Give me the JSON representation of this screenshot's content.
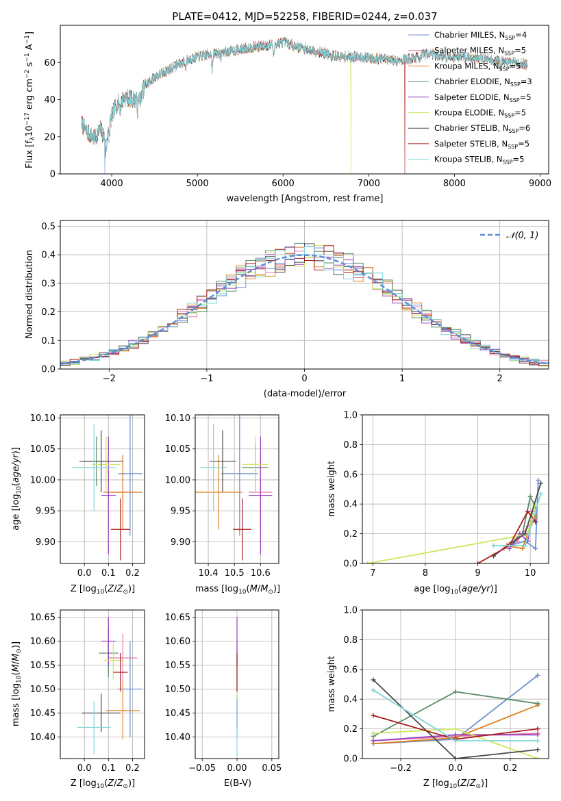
{
  "chart_data": [
    {
      "id": "spectrum",
      "type": "line",
      "title": "PLATE=0412, MJD=52258, FIBERID=0244, z=0.037",
      "xlabel": "wavelength [Angstrom, rest frame]",
      "ylabel_parts": [
        "Flux [f",
        "λ",
        "10",
        "−17",
        " erg cm",
        "−2",
        " s",
        "−1",
        " A",
        "−1",
        "]"
      ],
      "xlim": [
        3400,
        9100
      ],
      "ylim": [
        0,
        80
      ],
      "xticks": [
        4000,
        5000,
        6000,
        7000,
        8000,
        9000
      ],
      "yticks": [
        0,
        20,
        40,
        60
      ],
      "spectrum_wavelength_range": [
        3650,
        8850
      ],
      "continuum_anchors": {
        "wavelength": [
          3650,
          3700,
          3750,
          3800,
          3870,
          3930,
          3970,
          4050,
          4150,
          4300,
          4400,
          4500,
          4700,
          4860,
          5000,
          5200,
          5400,
          5600,
          5800,
          6000,
          6200,
          6400,
          6560,
          6700,
          6900,
          7100,
          7300,
          7500,
          7700,
          7900,
          8100,
          8300,
          8500,
          8700,
          8850
        ],
        "flux": [
          27,
          23,
          21,
          19,
          24,
          18,
          27,
          37,
          41,
          40,
          48,
          52,
          57,
          61,
          63,
          65,
          66,
          68,
          69,
          71,
          68,
          66,
          64,
          63,
          63,
          62,
          61,
          62,
          65,
          63,
          63,
          62,
          61,
          60,
          59
        ]
      },
      "absorption_features": [
        {
          "wavelength": 3934,
          "depth": 8
        },
        {
          "wavelength": 3969,
          "depth": 7
        },
        {
          "wavelength": 4102,
          "depth": 4
        },
        {
          "wavelength": 4304,
          "depth": 6
        },
        {
          "wavelength": 4340,
          "depth": 4
        },
        {
          "wavelength": 4861,
          "depth": 4
        },
        {
          "wavelength": 5175,
          "depth": 8
        },
        {
          "wavelength": 5270,
          "depth": 3
        },
        {
          "wavelength": 5893,
          "depth": 7
        },
        {
          "wavelength": 6563,
          "depth": 3
        },
        {
          "wavelength": 7600,
          "depth": 2
        },
        {
          "wavelength": 8542,
          "depth": 4
        }
      ],
      "model_dropouts": [
        {
          "model": "Chabrier MILES",
          "wavelength": 3920
        },
        {
          "model": "Kroupa ELODIE",
          "wavelength": 6790
        },
        {
          "model": "Salpeter STELIB",
          "wavelength": 7420
        }
      ],
      "models": [
        {
          "name": "Chabrier MILES",
          "nssp": 4,
          "color": "#6e8fd4"
        },
        {
          "name": "Salpeter MILES",
          "nssp": 5,
          "color": "#e07aa8"
        },
        {
          "name": "Kroupa MILES",
          "nssp": 5,
          "color": "#e0801c"
        },
        {
          "name": "Chabrier ELODIE",
          "nssp": 3,
          "color": "#5a8a68"
        },
        {
          "name": "Salpeter ELODIE",
          "nssp": 5,
          "color": "#9b3dbf"
        },
        {
          "name": "Kroupa ELODIE",
          "nssp": 5,
          "color": "#cde65e"
        },
        {
          "name": "Chabrier STELIB",
          "nssp": 6,
          "color": "#4a4a4a"
        },
        {
          "name": "Salpeter STELIB",
          "nssp": 5,
          "color": "#a81c1c"
        },
        {
          "name": "Kroupa STELIB",
          "nssp": 5,
          "color": "#7ed6dc"
        }
      ],
      "legend": {
        "placement": "top-right",
        "nssp_prefix": "N",
        "nssp_sub": "SSP",
        "nssp_eq": "="
      }
    },
    {
      "id": "residuals",
      "type": "histogram",
      "xlabel": "(data-model)/error",
      "ylabel": "Normed distribution",
      "xlim": [
        -2.5,
        2.5
      ],
      "ylim": [
        0,
        0.52
      ],
      "xticks": [
        -2,
        -1,
        0,
        1,
        2
      ],
      "yticks": [
        0,
        0.1,
        0.2,
        0.3,
        0.4,
        0.5
      ],
      "bin_width": 0.1,
      "grid": true,
      "reference_curve": {
        "name": "𝒩(0, 1)",
        "mean": 0,
        "sigma": 1,
        "color": "#5b8bd9",
        "dashed": true
      },
      "legend": {
        "placement": "top-right"
      }
    },
    {
      "id": "age-vs-z",
      "type": "errorbar",
      "xlabel": "Z [log10(Z/Z⊙)]",
      "ylabel": "age  [log10(age/yr)]",
      "xlim": [
        -0.1,
        0.25
      ],
      "ylim": [
        9.865,
        10.105
      ],
      "xticks": [
        0.0,
        0.1,
        0.2
      ],
      "yticks": [
        9.9,
        9.95,
        10.0,
        10.05,
        10.1
      ],
      "grid": true,
      "points": [
        {
          "model": "Chabrier MILES",
          "x": 0.19,
          "xerr": 0.05,
          "y": 10.01,
          "yerr": 0.1
        },
        {
          "model": "Salpeter MILES",
          "x": 0.16,
          "xerr": 0.06,
          "y": 9.98,
          "yerr": 0.06
        },
        {
          "model": "Kroupa MILES",
          "x": 0.16,
          "xerr": 0.08,
          "y": 9.98,
          "yerr": 0.06
        },
        {
          "model": "Chabrier ELODIE",
          "x": 0.05,
          "xerr": 0.05,
          "y": 10.03,
          "yerr": 0.04
        },
        {
          "model": "Salpeter ELODIE",
          "x": 0.1,
          "xerr": 0.03,
          "y": 9.975,
          "yerr": 0.095
        },
        {
          "model": "Kroupa ELODIE",
          "x": 0.09,
          "xerr": 0.06,
          "y": 10.025,
          "yerr": 0.045
        },
        {
          "model": "Chabrier STELIB",
          "x": 0.07,
          "xerr": 0.09,
          "y": 10.03,
          "yerr": 0.05
        },
        {
          "model": "Salpeter STELIB",
          "x": 0.15,
          "xerr": 0.04,
          "y": 9.92,
          "yerr": 0.05
        },
        {
          "model": "Kroupa STELIB",
          "x": 0.04,
          "xerr": 0.09,
          "y": 10.02,
          "yerr": 0.07
        }
      ]
    },
    {
      "id": "age-vs-mass",
      "type": "errorbar",
      "xlabel": "mass [log10(M/M⊙)]",
      "xlim": [
        10.35,
        10.67
      ],
      "ylim": [
        9.865,
        10.105
      ],
      "xticks": [
        10.4,
        10.5,
        10.6
      ],
      "yticks": [
        9.9,
        9.95,
        10.0,
        10.05,
        10.1
      ],
      "grid": true,
      "points": [
        {
          "model": "Chabrier MILES",
          "x": 10.52,
          "xerr": 0.07,
          "y": 10.01,
          "yerr": 0.1
        },
        {
          "model": "Salpeter MILES",
          "x": 10.6,
          "xerr": 0.045,
          "y": 9.98,
          "yerr": 0.06
        },
        {
          "model": "Kroupa MILES",
          "x": 10.44,
          "xerr": 0.09,
          "y": 9.98,
          "yerr": 0.06
        },
        {
          "model": "Chabrier ELODIE",
          "x": 10.58,
          "xerr": 0.05,
          "y": 10.02,
          "yerr": 0.04
        },
        {
          "model": "Salpeter ELODIE",
          "x": 10.6,
          "xerr": 0.045,
          "y": 9.975,
          "yerr": 0.095
        },
        {
          "model": "Kroupa ELODIE",
          "x": 10.58,
          "xerr": 0.05,
          "y": 10.025,
          "yerr": 0.045
        },
        {
          "model": "Chabrier STELIB",
          "x": 10.455,
          "xerr": 0.05,
          "y": 10.03,
          "yerr": 0.05
        },
        {
          "model": "Salpeter STELIB",
          "x": 10.53,
          "xerr": 0.035,
          "y": 9.92,
          "yerr": 0.05
        },
        {
          "model": "Kroupa STELIB",
          "x": 10.42,
          "xerr": 0.05,
          "y": 10.02,
          "yerr": 0.07
        }
      ]
    },
    {
      "id": "weight-vs-age",
      "type": "line",
      "xlabel": "age  [log10(age/yr)]",
      "ylabel": "mass weight",
      "xlim": [
        6.8,
        10.35
      ],
      "ylim": [
        0,
        1
      ],
      "xticks": [
        7,
        8,
        9,
        10
      ],
      "yticks": [
        0.0,
        0.2,
        0.4,
        0.6,
        0.8,
        1.0
      ],
      "grid": true,
      "series": [
        {
          "model": "Chabrier MILES",
          "x": [
            9.6,
            9.9,
            10.1,
            10.15
          ],
          "y": [
            0.12,
            0.15,
            0.1,
            0.56
          ]
        },
        {
          "model": "Salpeter MILES",
          "x": [
            9.5,
            9.75,
            9.95,
            10.1
          ],
          "y": [
            0.1,
            0.15,
            0.25,
            0.3
          ]
        },
        {
          "model": "Kroupa MILES",
          "x": [
            9.55,
            9.85,
            9.95,
            10.1
          ],
          "y": [
            0.12,
            0.1,
            0.2,
            0.32
          ]
        },
        {
          "model": "Chabrier ELODIE",
          "x": [
            9.7,
            9.85,
            10.0,
            10.1
          ],
          "y": [
            0.15,
            0.2,
            0.45,
            0.38
          ]
        },
        {
          "model": "Salpeter ELODIE",
          "x": [
            9.6,
            9.8,
            9.95,
            10.05
          ],
          "y": [
            0.1,
            0.2,
            0.15,
            0.35
          ]
        },
        {
          "model": "Kroupa ELODIE",
          "x": [
            6.9,
            9.7,
            9.95,
            10.1
          ],
          "y": [
            0.0,
            0.18,
            0.2,
            0.4
          ]
        },
        {
          "model": "Chabrier STELIB",
          "x": [
            9.3,
            9.6,
            9.9,
            10.2
          ],
          "y": [
            0.05,
            0.13,
            0.2,
            0.54
          ]
        },
        {
          "model": "Salpeter STELIB",
          "x": [
            9.0,
            9.6,
            9.95,
            10.1
          ],
          "y": [
            0.0,
            0.12,
            0.35,
            0.28
          ]
        },
        {
          "model": "Kroupa STELIB",
          "x": [
            9.3,
            9.6,
            9.9,
            10.2
          ],
          "y": [
            0.12,
            0.12,
            0.12,
            0.47
          ]
        }
      ]
    },
    {
      "id": "mass-vs-z",
      "type": "errorbar",
      "xlabel": "Z [log10(Z/Z⊙)]",
      "ylabel": "mass [log10(M/M⊙)]",
      "xlim": [
        -0.1,
        0.25
      ],
      "ylim": [
        10.355,
        10.665
      ],
      "xticks": [
        0.0,
        0.1,
        0.2
      ],
      "yticks": [
        10.4,
        10.45,
        10.5,
        10.55,
        10.6,
        10.65
      ],
      "grid": true,
      "points": [
        {
          "model": "Chabrier MILES",
          "x": 0.19,
          "xerr": 0.05,
          "y": 10.5,
          "yerr": 0.1
        },
        {
          "model": "Salpeter MILES",
          "x": 0.16,
          "xerr": 0.06,
          "y": 10.565,
          "yerr": 0.05
        },
        {
          "model": "Kroupa MILES",
          "x": 0.16,
          "xerr": 0.07,
          "y": 10.455,
          "yerr": 0.06
        },
        {
          "model": "Chabrier ELODIE",
          "x": 0.1,
          "xerr": 0.04,
          "y": 10.575,
          "yerr": 0.05
        },
        {
          "model": "Salpeter ELODIE",
          "x": 0.1,
          "xerr": 0.03,
          "y": 10.6,
          "yerr": 0.05
        },
        {
          "model": "Kroupa ELODIE",
          "x": 0.12,
          "xerr": 0.04,
          "y": 10.56,
          "yerr": 0.04
        },
        {
          "model": "Chabrier STELIB",
          "x": 0.07,
          "xerr": 0.08,
          "y": 10.45,
          "yerr": 0.04
        },
        {
          "model": "Salpeter STELIB",
          "x": 0.15,
          "xerr": 0.03,
          "y": 10.535,
          "yerr": 0.04
        },
        {
          "model": "Kroupa STELIB",
          "x": 0.04,
          "xerr": 0.07,
          "y": 10.42,
          "yerr": 0.055
        }
      ]
    },
    {
      "id": "mass-vs-ebv",
      "type": "errorbar",
      "xlabel": "E(B-V)",
      "xlim": [
        -0.06,
        0.06
      ],
      "ylim": [
        10.355,
        10.665
      ],
      "xticks": [
        -0.05,
        0.0,
        0.05
      ],
      "yticks": [
        10.4,
        10.45,
        10.5,
        10.55,
        10.6,
        10.65
      ],
      "grid": true,
      "points": [
        {
          "model": "Chabrier MILES",
          "x": 0,
          "xerr": 0,
          "y": 10.5,
          "yerr": 0.1
        },
        {
          "model": "Salpeter ELODIE",
          "x": 0,
          "xerr": 0,
          "y": 10.6,
          "yerr": 0.05
        },
        {
          "model": "Kroupa ELODIE",
          "x": 0,
          "xerr": 0,
          "y": 10.5,
          "yerr": 0.02
        },
        {
          "model": "Chabrier STELIB",
          "x": 0,
          "xerr": 0,
          "y": 10.45,
          "yerr": 0.03
        },
        {
          "model": "Salpeter STELIB",
          "x": 0,
          "xerr": 0,
          "y": 10.535,
          "yerr": 0.04
        },
        {
          "model": "Kroupa STELIB",
          "x": 0,
          "xerr": 0,
          "y": 10.42,
          "yerr": 0.06
        }
      ]
    },
    {
      "id": "weight-vs-z",
      "type": "line",
      "xlabel": "Z [log10(Z/Z⊙)]",
      "ylabel": "mass weight",
      "xlim": [
        -0.34,
        0.34
      ],
      "ylim": [
        0,
        1
      ],
      "xticks": [
        -0.2,
        0.0,
        0.2
      ],
      "yticks": [
        0.0,
        0.2,
        0.4,
        0.6,
        0.8,
        1.0
      ],
      "grid": true,
      "series": [
        {
          "model": "Chabrier MILES",
          "x": [
            -0.3,
            0.0,
            0.3
          ],
          "y": [
            0.1,
            0.13,
            0.56
          ]
        },
        {
          "model": "Salpeter MILES",
          "x": [
            -0.3,
            0.0,
            0.3
          ],
          "y": [
            0.12,
            0.15,
            0.17
          ]
        },
        {
          "model": "Kroupa MILES",
          "x": [
            -0.3,
            0.0,
            0.3
          ],
          "y": [
            0.1,
            0.14,
            0.36
          ]
        },
        {
          "model": "Chabrier ELODIE",
          "x": [
            -0.3,
            0.0,
            0.3
          ],
          "y": [
            0.15,
            0.45,
            0.37
          ]
        },
        {
          "model": "Salpeter ELODIE",
          "x": [
            -0.3,
            0.0,
            0.3
          ],
          "y": [
            0.12,
            0.16,
            0.16
          ]
        },
        {
          "model": "Kroupa ELODIE",
          "x": [
            -0.3,
            0.0,
            0.3
          ],
          "y": [
            0.17,
            0.2,
            0.0
          ]
        },
        {
          "model": "Chabrier STELIB",
          "x": [
            -0.3,
            0.0,
            0.3
          ],
          "y": [
            0.53,
            0.0,
            0.06
          ]
        },
        {
          "model": "Salpeter STELIB",
          "x": [
            -0.3,
            0.0,
            0.3
          ],
          "y": [
            0.29,
            0.13,
            0.2
          ]
        },
        {
          "model": "Kroupa STELIB",
          "x": [
            -0.3,
            0.0,
            0.3
          ],
          "y": [
            0.46,
            0.12,
            0.12
          ]
        }
      ]
    }
  ]
}
